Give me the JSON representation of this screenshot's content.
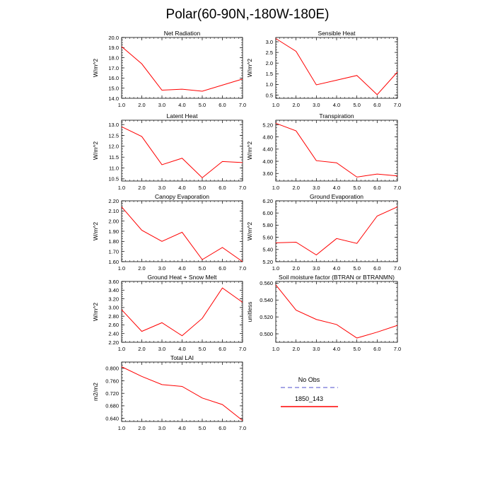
{
  "figure_title": "Polar(60-90N,-180W-180E)",
  "colors": {
    "series": "#ff0000",
    "obs": "#8888dd",
    "axis": "#000000"
  },
  "legend": [
    {
      "label": "No Obs",
      "color": "#8888dd",
      "dashed": true
    },
    {
      "label": "1850_143",
      "color": "#ff0000",
      "dashed": false
    }
  ],
  "chart_data": [
    {
      "type": "line",
      "title": "Net Radiation",
      "ylabel": "W/m^2",
      "x": [
        1,
        2,
        3,
        4,
        5,
        6,
        7
      ],
      "values": [
        19.1,
        17.4,
        14.8,
        14.9,
        14.7,
        15.3,
        15.9
      ],
      "xlim": [
        1,
        7
      ],
      "ylim": [
        14.0,
        20.0
      ],
      "xticks": [
        "1.0",
        "2.0",
        "3.0",
        "4.0",
        "5.0",
        "6.0",
        "7.0"
      ],
      "yticks": [
        "14.0",
        "15.0",
        "16.0",
        "17.0",
        "18.0",
        "19.0",
        "20.0"
      ]
    },
    {
      "type": "line",
      "title": "Sensible Heat",
      "ylabel": "W/m^2",
      "x": [
        1,
        2,
        3,
        4,
        5,
        6,
        7
      ],
      "values": [
        3.15,
        2.55,
        0.98,
        1.2,
        1.42,
        0.52,
        1.58
      ],
      "xlim": [
        1,
        7
      ],
      "ylim": [
        0.35,
        3.2
      ],
      "xticks": [
        "1.0",
        "2.0",
        "3.0",
        "4.0",
        "5.0",
        "6.0",
        "7.0"
      ],
      "yticks": [
        "0.5",
        "1.0",
        "1.5",
        "2.0",
        "2.5",
        "3.0"
      ]
    },
    {
      "type": "line",
      "title": "Latent Heat",
      "ylabel": "W/m^2",
      "x": [
        1,
        2,
        3,
        4,
        5,
        6,
        7
      ],
      "values": [
        12.9,
        12.45,
        11.15,
        11.45,
        10.55,
        11.3,
        11.25
      ],
      "xlim": [
        1,
        7
      ],
      "ylim": [
        10.4,
        13.2
      ],
      "xticks": [
        "1.0",
        "2.0",
        "3.0",
        "4.0",
        "5.0",
        "6.0",
        "7.0"
      ],
      "yticks": [
        "10.5",
        "11.0",
        "11.5",
        "12.0",
        "12.5",
        "13.0"
      ]
    },
    {
      "type": "line",
      "title": "Transpiration",
      "ylabel": "W/m^2",
      "x": [
        1,
        2,
        3,
        4,
        5,
        6,
        7
      ],
      "values": [
        5.25,
        5.0,
        4.02,
        3.95,
        3.48,
        3.58,
        3.52
      ],
      "xlim": [
        1,
        7
      ],
      "ylim": [
        3.35,
        5.35
      ],
      "xticks": [
        "1.0",
        "2.0",
        "3.0",
        "4.0",
        "5.0",
        "6.0",
        "7.0"
      ],
      "yticks": [
        "3.60",
        "4.00",
        "4.40",
        "4.80",
        "5.20"
      ]
    },
    {
      "type": "line",
      "title": "Canopy Evaporation",
      "ylabel": "W/m^2",
      "x": [
        1,
        2,
        3,
        4,
        5,
        6,
        7
      ],
      "values": [
        2.14,
        1.91,
        1.8,
        1.89,
        1.62,
        1.74,
        1.6
      ],
      "xlim": [
        1,
        7
      ],
      "ylim": [
        1.6,
        2.2
      ],
      "xticks": [
        "1.0",
        "2.0",
        "3.0",
        "4.0",
        "5.0",
        "6.0",
        "7.0"
      ],
      "yticks": [
        "1.60",
        "1.70",
        "1.80",
        "1.90",
        "2.00",
        "2.10",
        "2.20"
      ]
    },
    {
      "type": "line",
      "title": "Ground Evaporation",
      "ylabel": "W/m^2",
      "x": [
        1,
        2,
        3,
        4,
        5,
        6,
        7
      ],
      "values": [
        5.51,
        5.52,
        5.31,
        5.58,
        5.5,
        5.95,
        6.1
      ],
      "xlim": [
        1,
        7
      ],
      "ylim": [
        5.2,
        6.2
      ],
      "xticks": [
        "1.0",
        "2.0",
        "3.0",
        "4.0",
        "5.0",
        "6.0",
        "7.0"
      ],
      "yticks": [
        "5.20",
        "5.40",
        "5.60",
        "5.80",
        "6.00",
        "6.20"
      ]
    },
    {
      "type": "line",
      "title": "Ground Heat + Snow Melt",
      "ylabel": "W/m^2",
      "x": [
        1,
        2,
        3,
        4,
        5,
        6,
        7
      ],
      "values": [
        2.95,
        2.45,
        2.65,
        2.35,
        2.75,
        3.45,
        3.12
      ],
      "xlim": [
        1,
        7
      ],
      "ylim": [
        2.2,
        3.6
      ],
      "xticks": [
        "1.0",
        "2.0",
        "3.0",
        "4.0",
        "5.0",
        "6.0",
        "7.0"
      ],
      "yticks": [
        "2.20",
        "2.40",
        "2.60",
        "2.80",
        "3.00",
        "3.20",
        "3.40",
        "3.60"
      ]
    },
    {
      "type": "line",
      "title": "Soil moisture factor (BTRAN or BTRANMN)",
      "ylabel": "unitless",
      "x": [
        1,
        2,
        3,
        4,
        5,
        6,
        7
      ],
      "values": [
        0.558,
        0.528,
        0.517,
        0.511,
        0.495,
        0.502,
        0.51
      ],
      "xlim": [
        1,
        7
      ],
      "ylim": [
        0.49,
        0.562
      ],
      "xticks": [
        "1.0",
        "2.0",
        "3.0",
        "4.0",
        "5.0",
        "6.0",
        "7.0"
      ],
      "yticks": [
        "0.500",
        "0.520",
        "0.540",
        "0.560"
      ]
    },
    {
      "type": "line",
      "title": "Total LAI",
      "ylabel": "m2/m2",
      "x": [
        1,
        2,
        3,
        4,
        5,
        6,
        7
      ],
      "values": [
        0.805,
        0.774,
        0.748,
        0.742,
        0.705,
        0.684,
        0.633
      ],
      "xlim": [
        1,
        7
      ],
      "ylim": [
        0.63,
        0.82
      ],
      "xticks": [
        "1.0",
        "2.0",
        "3.0",
        "4.0",
        "5.0",
        "6.0",
        "7.0"
      ],
      "yticks": [
        "0.640",
        "0.680",
        "0.720",
        "0.760",
        "0.800"
      ]
    }
  ]
}
